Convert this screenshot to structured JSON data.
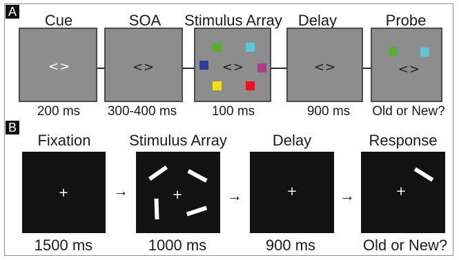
{
  "panel_a": {
    "tag": "A",
    "stages": [
      {
        "title": "Cue",
        "time": "200 ms"
      },
      {
        "title": "SOA",
        "time": "300-400 ms"
      },
      {
        "title": "Stimulus Array",
        "time": "100 ms"
      },
      {
        "title": "Delay",
        "time": "900 ms"
      },
      {
        "title": "Probe",
        "time": "Old or New?"
      }
    ],
    "cue_symbol": "<>",
    "square_colors": {
      "green": "#58b030",
      "cyan": "#5cc8d8",
      "blue": "#2a3e9c",
      "magenta": "#b03a8c",
      "yellow": "#f2e010",
      "red": "#e8141c"
    }
  },
  "panel_b": {
    "tag": "B",
    "stages": [
      {
        "title": "Fixation",
        "time": "1500 ms"
      },
      {
        "title": "Stimulus Array",
        "time": "1000 ms"
      },
      {
        "title": "Delay",
        "time": "900 ms"
      },
      {
        "title": "Response",
        "time": "Old or New?"
      }
    ],
    "fixation_symbol": "+",
    "arrow_symbol": "→"
  }
}
